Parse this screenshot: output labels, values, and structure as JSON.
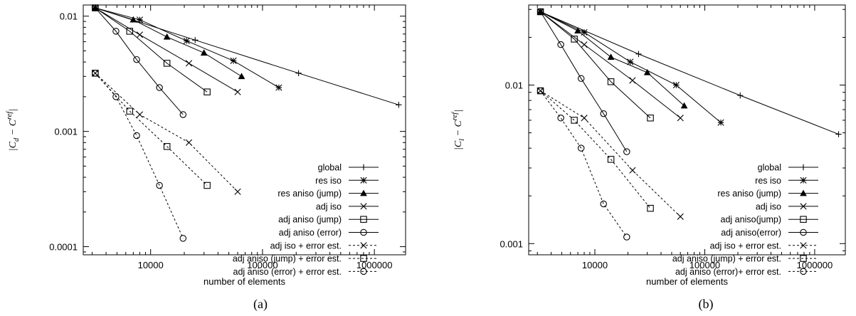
{
  "chart_data": [
    {
      "type": "line",
      "panel_label": "(a)",
      "xlabel": "number of elements",
      "ylabel": "|C_d − C_d^ref|",
      "ylabel_main": "|C",
      "ylabel_sub": "d",
      "ylabel_mid": " − C",
      "ylabel_sup": "ref",
      "ylabel_end": "|",
      "xscale": "log",
      "yscale": "log",
      "xlim": [
        2500,
        1900000
      ],
      "ylim": [
        8.5e-05,
        0.0125
      ],
      "xticks": [
        10000,
        100000,
        1000000
      ],
      "xtick_labels": [
        "10000",
        "100000",
        "1000000"
      ],
      "yticks": [
        0.0001,
        0.001,
        0.01
      ],
      "ytick_labels": [
        "0.0001",
        "0.001",
        "0.01"
      ],
      "legend_position": "bottom-right",
      "series": [
        {
          "name": "global",
          "marker": "plus",
          "dashed": false,
          "x": [
            3200,
            25000,
            210000,
            1650000
          ],
          "y": [
            0.0118,
            0.0062,
            0.0032,
            0.0017
          ]
        },
        {
          "name": "res iso",
          "marker": "star",
          "dashed": false,
          "x": [
            3200,
            8000,
            21000,
            55000,
            140000
          ],
          "y": [
            0.0118,
            0.0093,
            0.0061,
            0.0041,
            0.0024
          ]
        },
        {
          "name": "res aniso (jump)",
          "marker": "triangle",
          "dashed": false,
          "x": [
            3200,
            7000,
            14000,
            30000,
            65000
          ],
          "y": [
            0.0118,
            0.0093,
            0.0066,
            0.0048,
            0.003
          ]
        },
        {
          "name": "adj iso",
          "marker": "cross",
          "dashed": false,
          "x": [
            3200,
            8000,
            22000,
            60000
          ],
          "y": [
            0.0118,
            0.0069,
            0.0039,
            0.0022
          ]
        },
        {
          "name": "adj aniso (jump)",
          "marker": "square",
          "dashed": false,
          "x": [
            3200,
            6500,
            14000,
            32000
          ],
          "y": [
            0.0118,
            0.0074,
            0.0039,
            0.0022
          ]
        },
        {
          "name": "adj aniso (error)",
          "marker": "circle",
          "dashed": false,
          "x": [
            3200,
            4900,
            7500,
            12000,
            19500
          ],
          "y": [
            0.0118,
            0.0074,
            0.0042,
            0.0024,
            0.0014
          ]
        },
        {
          "name": "adj iso + error est.",
          "marker": "cross",
          "dashed": true,
          "x": [
            3200,
            8000,
            22000,
            60000
          ],
          "y": [
            0.0032,
            0.0014,
            0.0008,
            0.0003
          ]
        },
        {
          "name": "adj aniso (jump) + error est.",
          "marker": "square",
          "dashed": true,
          "x": [
            3200,
            6500,
            14000,
            32000
          ],
          "y": [
            0.0032,
            0.0015,
            0.00074,
            0.00034
          ]
        },
        {
          "name": "adj aniso (error) + error est.",
          "marker": "circle",
          "dashed": true,
          "x": [
            3200,
            4900,
            7500,
            12000,
            19500
          ],
          "y": [
            0.0032,
            0.002,
            0.00092,
            0.00034,
            0.000118
          ]
        }
      ]
    },
    {
      "type": "line",
      "panel_label": "(b)",
      "xlabel": "number of elements",
      "ylabel": "|C_l − C_l^ref|",
      "ylabel_main": "|C",
      "ylabel_sub": "l",
      "ylabel_mid": " − C",
      "ylabel_sup": "ref",
      "ylabel_end": "|",
      "xscale": "log",
      "yscale": "log",
      "xlim": [
        2500,
        1900000
      ],
      "ylim": [
        0.00085,
        0.032
      ],
      "xticks": [
        10000,
        100000,
        1000000
      ],
      "xtick_labels": [
        "10000",
        "100000",
        "1000000"
      ],
      "yticks": [
        0.001,
        0.01
      ],
      "ytick_labels": [
        "0.001",
        "0.01"
      ],
      "legend_position": "bottom-right",
      "series": [
        {
          "name": "global",
          "marker": "plus",
          "dashed": false,
          "x": [
            3200,
            25000,
            210000,
            1650000
          ],
          "y": [
            0.029,
            0.0157,
            0.0086,
            0.0049
          ]
        },
        {
          "name": "res iso",
          "marker": "star",
          "dashed": false,
          "x": [
            3200,
            8000,
            21000,
            55000,
            140000
          ],
          "y": [
            0.029,
            0.0215,
            0.014,
            0.01,
            0.0058
          ]
        },
        {
          "name": "res aniso (jump)",
          "marker": "triangle",
          "dashed": false,
          "x": [
            3200,
            7000,
            14000,
            30000,
            65000
          ],
          "y": [
            0.029,
            0.022,
            0.015,
            0.012,
            0.0074
          ]
        },
        {
          "name": "adj iso",
          "marker": "cross",
          "dashed": false,
          "x": [
            3200,
            8000,
            22000,
            60000
          ],
          "y": [
            0.029,
            0.018,
            0.0107,
            0.0062
          ]
        },
        {
          "name": "adj aniso(jump)",
          "marker": "square",
          "dashed": false,
          "x": [
            3200,
            6500,
            14000,
            32000
          ],
          "y": [
            0.029,
            0.0195,
            0.0105,
            0.0062
          ]
        },
        {
          "name": "adj aniso(error)",
          "marker": "circle",
          "dashed": false,
          "x": [
            3200,
            4900,
            7500,
            12000,
            19500
          ],
          "y": [
            0.029,
            0.018,
            0.011,
            0.0066,
            0.0038
          ]
        },
        {
          "name": "adj iso + error est.",
          "marker": "cross",
          "dashed": true,
          "x": [
            3200,
            8000,
            22000,
            60000
          ],
          "y": [
            0.0092,
            0.0062,
            0.0029,
            0.00148
          ]
        },
        {
          "name": "adj aniso (jump) + error est.",
          "marker": "square",
          "dashed": true,
          "x": [
            3200,
            6500,
            14000,
            32000
          ],
          "y": [
            0.0092,
            0.006,
            0.0034,
            0.00167
          ]
        },
        {
          "name": "adj aniso (error)+ error est.",
          "marker": "circle",
          "dashed": true,
          "x": [
            3200,
            4900,
            7500,
            12000,
            19500
          ],
          "y": [
            0.0092,
            0.0062,
            0.004,
            0.00178,
            0.0011
          ]
        }
      ]
    }
  ]
}
